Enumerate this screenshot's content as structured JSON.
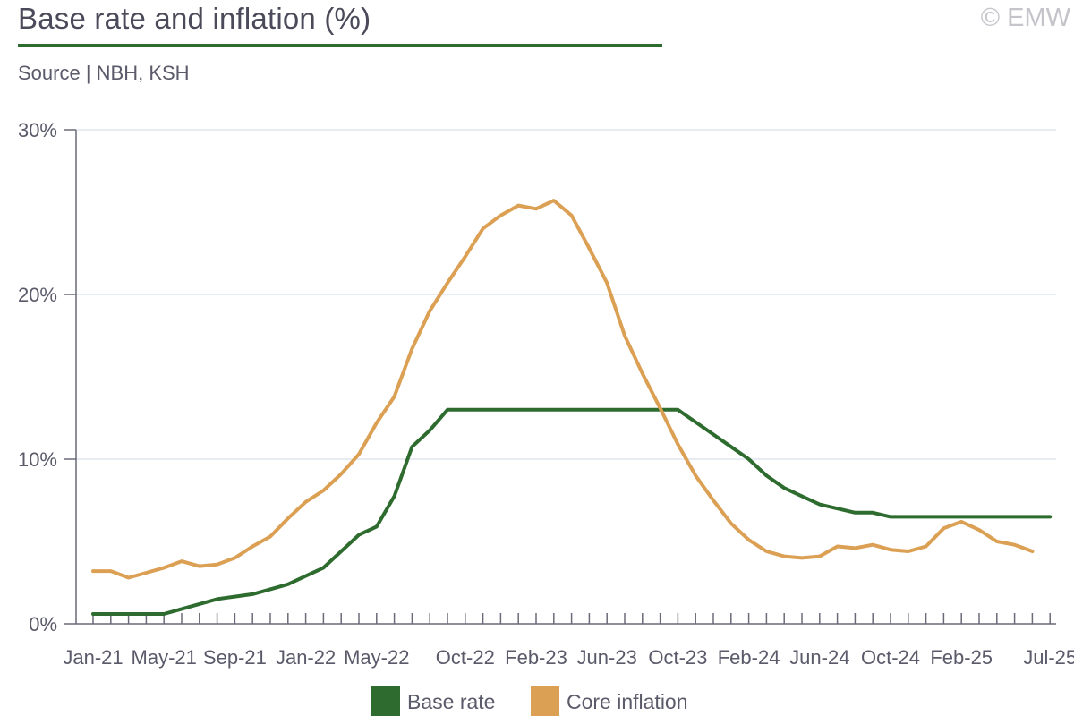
{
  "header": {
    "title": "Base rate and inflation (%)",
    "source": "Source | NBH, KSH",
    "copyright": "© EMW"
  },
  "colors": {
    "base_rate": "#2e6b2e",
    "core_inflation": "#dba053",
    "grid": "#dfe6ee",
    "axis": "#6a6a78",
    "title_rule": "#2e6b2e"
  },
  "chart_data": {
    "type": "line",
    "x_start": "Jan-21",
    "x_tick_labels": [
      "Jan-21",
      "May-21",
      "Sep-21",
      "Jan-22",
      "May-22",
      "Oct-22",
      "Feb-23",
      "Jun-23",
      "Oct-23",
      "Feb-24",
      "Jun-24",
      "Oct-24",
      "Feb-25",
      "Jul-25"
    ],
    "x_tick_index": [
      0,
      4,
      8,
      12,
      16,
      21,
      25,
      29,
      33,
      37,
      41,
      45,
      49,
      54
    ],
    "y_ticks": [
      "0%",
      "10%",
      "20%",
      "30%"
    ],
    "ylim": [
      0,
      30
    ],
    "grid": true,
    "legend_position": "bottom",
    "series": [
      {
        "name": "Base rate",
        "values": [
          0.6,
          0.6,
          0.6,
          0.6,
          0.6,
          0.9,
          1.2,
          1.5,
          1.65,
          1.8,
          2.1,
          2.4,
          2.9,
          3.4,
          4.4,
          5.4,
          5.9,
          7.75,
          10.75,
          11.75,
          13.0,
          13.0,
          13.0,
          13.0,
          13.0,
          13.0,
          13.0,
          13.0,
          13.0,
          13.0,
          13.0,
          13.0,
          13.0,
          13.0,
          12.25,
          11.5,
          10.75,
          10.0,
          9.0,
          8.25,
          7.75,
          7.25,
          7.0,
          6.75,
          6.75,
          6.5,
          6.5,
          6.5,
          6.5,
          6.5,
          6.5,
          6.5,
          6.5,
          6.5,
          6.5
        ]
      },
      {
        "name": "Core inflation",
        "values": [
          3.2,
          3.2,
          2.8,
          3.1,
          3.4,
          3.8,
          3.5,
          3.6,
          4.0,
          4.7,
          5.3,
          6.4,
          7.4,
          8.1,
          9.1,
          10.3,
          12.2,
          13.8,
          16.7,
          19.0,
          20.7,
          22.3,
          24.0,
          24.8,
          25.4,
          25.2,
          25.7,
          24.8,
          22.8,
          20.7,
          17.5,
          15.2,
          13.1,
          10.9,
          9.0,
          7.5,
          6.1,
          5.1,
          4.4,
          4.1,
          4.0,
          4.1,
          4.7,
          4.6,
          4.8,
          4.5,
          4.4,
          4.7,
          5.8,
          6.2,
          5.7,
          5.0,
          4.8,
          4.4
        ]
      }
    ]
  }
}
